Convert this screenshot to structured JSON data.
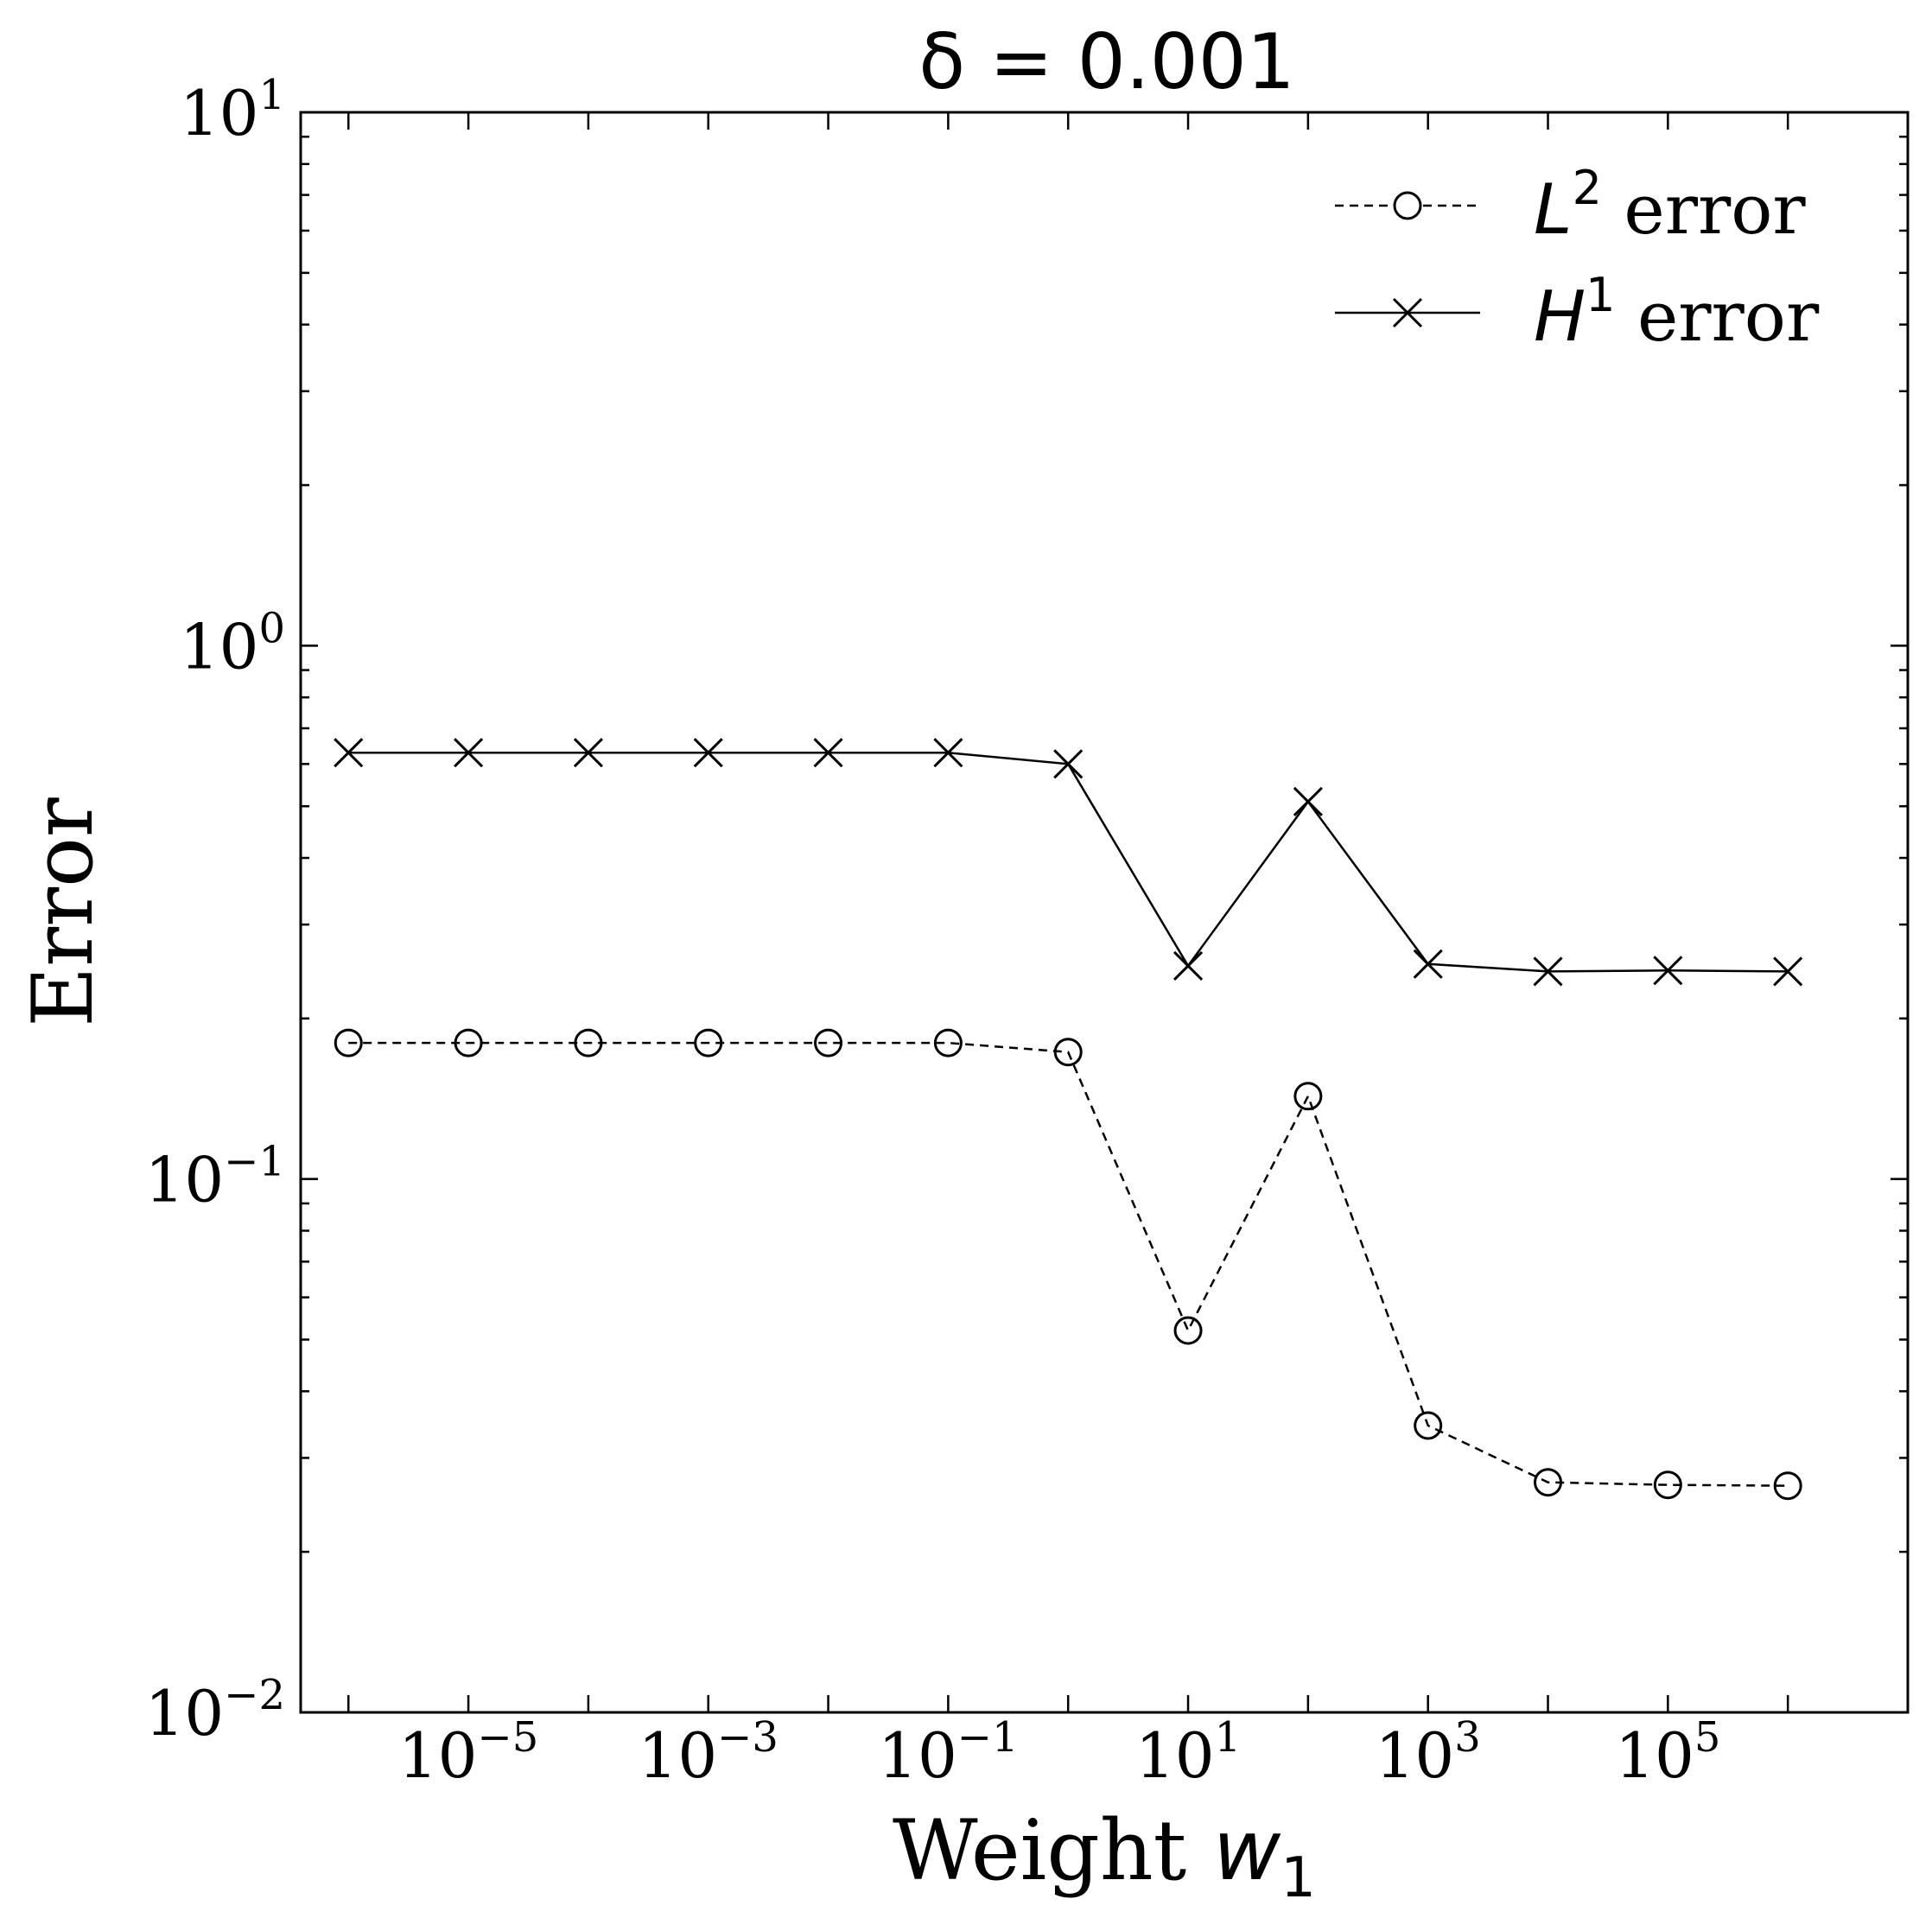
{
  "chart_data": {
    "type": "line",
    "title": "δ = 0.001",
    "xlabel_text": "Weight ",
    "xlabel_var": "w",
    "xlabel_sub": "1",
    "ylabel": "Error",
    "xscale": "log",
    "yscale": "log",
    "xlim": [
      4e-07,
      10000000.0
    ],
    "ylim": [
      0.01,
      10
    ],
    "grid": false,
    "legend_position": "top-right",
    "x": [
      1e-06,
      1e-05,
      0.0001,
      0.001,
      0.01,
      0.1,
      1,
      10,
      100,
      1000,
      10000,
      100000,
      1000000
    ],
    "xticks": [
      {
        "value": 1e-05,
        "base": "10",
        "exp": "−5"
      },
      {
        "value": 0.001,
        "base": "10",
        "exp": "−3"
      },
      {
        "value": 0.1,
        "base": "10",
        "exp": "−1"
      },
      {
        "value": 10,
        "base": "10",
        "exp": "1"
      },
      {
        "value": 1000,
        "base": "10",
        "exp": "3"
      },
      {
        "value": 100000,
        "base": "10",
        "exp": "5"
      }
    ],
    "yticks": [
      {
        "value": 10,
        "base": "10",
        "exp": "1"
      },
      {
        "value": 1,
        "base": "10",
        "exp": "0"
      },
      {
        "value": 0.1,
        "base": "10",
        "exp": "−1"
      },
      {
        "value": 0.01,
        "base": "10",
        "exp": "−2"
      }
    ],
    "series": [
      {
        "name": "L² error",
        "legend_var": "L",
        "legend_sup": "2",
        "legend_text": " error",
        "marker": "circle",
        "linestyle": "dashed",
        "color": "#000000",
        "values": [
          0.18,
          0.18,
          0.18,
          0.18,
          0.18,
          0.18,
          0.173,
          0.052,
          0.143,
          0.0345,
          0.027,
          0.0267,
          0.0266
        ]
      },
      {
        "name": "H¹ error",
        "legend_var": "H",
        "legend_sup": "1",
        "legend_text": " error",
        "marker": "x",
        "linestyle": "solid",
        "color": "#000000",
        "values": [
          0.63,
          0.63,
          0.63,
          0.63,
          0.63,
          0.63,
          0.6,
          0.251,
          0.51,
          0.253,
          0.245,
          0.246,
          0.245
        ]
      }
    ]
  }
}
